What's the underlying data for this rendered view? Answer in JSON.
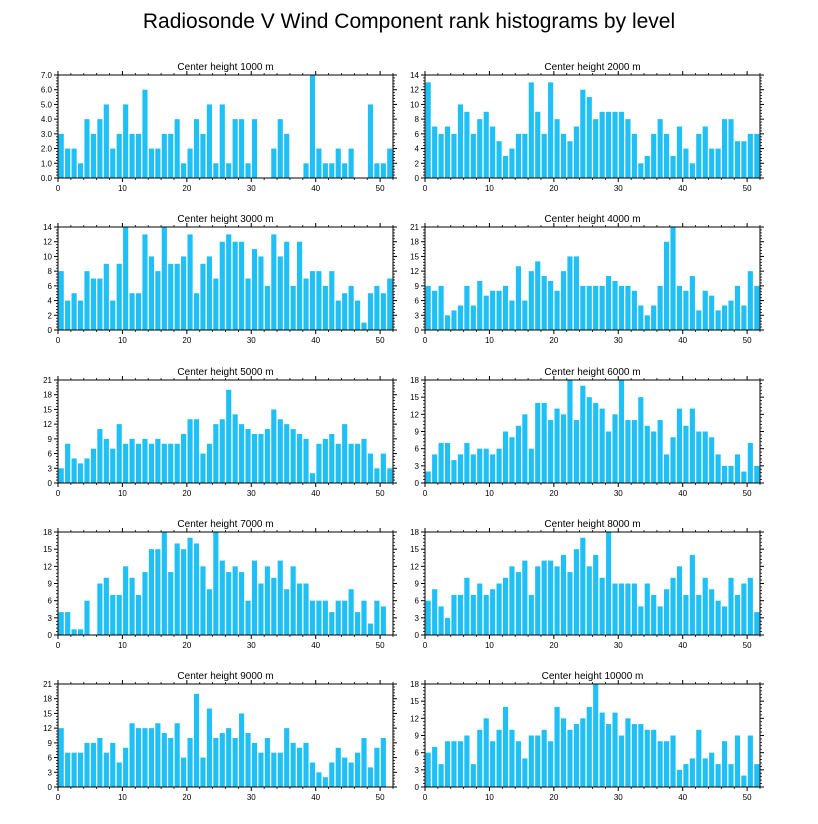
{
  "title": "Radiosonde V Wind Component rank histograms by level",
  "colors": {
    "bar": "#1ec0f5",
    "axis": "#000000",
    "background": "#ffffff"
  },
  "chart_data": [
    {
      "type": "bar",
      "title": "Center height 1000 m",
      "ylim": [
        0,
        7
      ],
      "yticks": [
        "0.0",
        "1.0",
        "2.0",
        "3.0",
        "4.0",
        "5.0",
        "6.0",
        "7.0"
      ],
      "xlim": [
        0,
        52
      ],
      "xticks": [
        "0",
        "10",
        "20",
        "30",
        "40",
        "50"
      ],
      "values": [
        3,
        2,
        2,
        1,
        4,
        3,
        4,
        5,
        2,
        3,
        5,
        3,
        3,
        6,
        2,
        2,
        3,
        3,
        4,
        1,
        2,
        4,
        3,
        5,
        1,
        5,
        1,
        4,
        4,
        1,
        4,
        0,
        0,
        2,
        4,
        3,
        0,
        0,
        1,
        7,
        2,
        1,
        1,
        2,
        1,
        2,
        0,
        0,
        5,
        1,
        1,
        2
      ]
    },
    {
      "type": "bar",
      "title": "Center height 2000 m",
      "ylim": [
        0,
        14
      ],
      "yticks": [
        "0",
        "2",
        "4",
        "6",
        "8",
        "10",
        "12",
        "14"
      ],
      "xlim": [
        0,
        52
      ],
      "xticks": [
        "0",
        "10",
        "20",
        "30",
        "40",
        "50"
      ],
      "values": [
        13,
        7,
        6,
        7,
        6,
        10,
        9,
        6,
        8,
        9,
        7,
        5,
        3,
        4,
        6,
        6,
        13,
        9,
        6,
        13,
        8,
        6,
        5,
        7,
        12,
        11,
        8,
        9,
        9,
        9,
        9,
        8,
        6,
        2,
        3,
        6,
        8,
        6,
        3,
        7,
        4,
        2,
        6,
        7,
        4,
        4,
        8,
        8,
        5,
        5,
        6,
        6
      ]
    },
    {
      "type": "bar",
      "title": "Center height 3000 m",
      "ylim": [
        0,
        14
      ],
      "yticks": [
        "0",
        "2",
        "4",
        "6",
        "8",
        "10",
        "12",
        "14"
      ],
      "xlim": [
        0,
        52
      ],
      "xticks": [
        "0",
        "10",
        "20",
        "30",
        "40",
        "50"
      ],
      "values": [
        8,
        4,
        5,
        4,
        8,
        7,
        7,
        9,
        4,
        9,
        14,
        5,
        5,
        13,
        10,
        8,
        14,
        9,
        9,
        10,
        13,
        5,
        9,
        10,
        7,
        12,
        13,
        12,
        12,
        7,
        11,
        10,
        6,
        13,
        10,
        12,
        6,
        12,
        7,
        8,
        8,
        6,
        8,
        4,
        5,
        6,
        4,
        1,
        5,
        6,
        5,
        7
      ]
    },
    {
      "type": "bar",
      "title": "Center height 4000 m",
      "ylim": [
        0,
        21
      ],
      "yticks": [
        "0",
        "3",
        "6",
        "9",
        "12",
        "15",
        "18",
        "21"
      ],
      "xlim": [
        0,
        52
      ],
      "xticks": [
        "0",
        "10",
        "20",
        "30",
        "40",
        "50"
      ],
      "values": [
        9,
        8,
        9,
        3,
        4,
        5,
        9,
        5,
        10,
        7,
        8,
        8,
        9,
        6,
        13,
        6,
        12,
        14,
        11,
        10,
        8,
        12,
        15,
        15,
        9,
        9,
        9,
        9,
        11,
        10,
        9,
        9,
        8,
        5,
        3,
        5,
        9,
        18,
        21,
        9,
        8,
        11,
        4,
        8,
        7,
        4,
        5,
        6,
        9,
        5,
        12,
        9
      ]
    },
    {
      "type": "bar",
      "title": "Center height 5000 m",
      "ylim": [
        0,
        21
      ],
      "yticks": [
        "0",
        "3",
        "6",
        "9",
        "12",
        "15",
        "18",
        "21"
      ],
      "xlim": [
        0,
        52
      ],
      "xticks": [
        "0",
        "10",
        "20",
        "30",
        "40",
        "50"
      ],
      "values": [
        3,
        8,
        5,
        4,
        5,
        7,
        11,
        9,
        7,
        12,
        8,
        9,
        8,
        9,
        8,
        9,
        8,
        8,
        8,
        10,
        13,
        13,
        6,
        8,
        12,
        13,
        19,
        14,
        12,
        11,
        10,
        10,
        11,
        15,
        13,
        12,
        11,
        10,
        9,
        2,
        8,
        9,
        10,
        8,
        12,
        8,
        8,
        9,
        6,
        3,
        6,
        3
      ]
    },
    {
      "type": "bar",
      "title": "Center height 6000 m",
      "ylim": [
        0,
        18
      ],
      "yticks": [
        "0",
        "3",
        "6",
        "9",
        "12",
        "15",
        "18"
      ],
      "xlim": [
        0,
        52
      ],
      "xticks": [
        "0",
        "10",
        "20",
        "30",
        "40",
        "50"
      ],
      "values": [
        2,
        5,
        7,
        7,
        4,
        5,
        7,
        5,
        6,
        6,
        5,
        6,
        9,
        8,
        10,
        12,
        6,
        14,
        14,
        11,
        13,
        12,
        18,
        11,
        17,
        15,
        14,
        13,
        9,
        12,
        18,
        11,
        11,
        15,
        10,
        9,
        11,
        5,
        8,
        13,
        10,
        13,
        9,
        9,
        8,
        5,
        3,
        3,
        5,
        2,
        7,
        3
      ]
    },
    {
      "type": "bar",
      "title": "Center height 7000 m",
      "ylim": [
        0,
        18
      ],
      "yticks": [
        "0",
        "3",
        "6",
        "9",
        "12",
        "15",
        "18"
      ],
      "xlim": [
        0,
        52
      ],
      "xticks": [
        "0",
        "10",
        "20",
        "30",
        "40",
        "50"
      ],
      "values": [
        4,
        4,
        1,
        1,
        6,
        0,
        9,
        10,
        7,
        7,
        12,
        10,
        7,
        11,
        15,
        15,
        18,
        11,
        16,
        15,
        17,
        16,
        12,
        8,
        18,
        13,
        11,
        12,
        11,
        6,
        13,
        9,
        12,
        10,
        13,
        8,
        12,
        9,
        9,
        6,
        6,
        6,
        4,
        6,
        6,
        8,
        4,
        6,
        2,
        6,
        5,
        0
      ]
    },
    {
      "type": "bar",
      "title": "Center height 8000 m",
      "ylim": [
        0,
        18
      ],
      "yticks": [
        "0",
        "3",
        "6",
        "9",
        "12",
        "15",
        "18"
      ],
      "xlim": [
        0,
        52
      ],
      "xticks": [
        "0",
        "10",
        "20",
        "30",
        "40",
        "50"
      ],
      "values": [
        6,
        8,
        5,
        3,
        7,
        7,
        10,
        7,
        9,
        7,
        8,
        9,
        10,
        12,
        11,
        13,
        7,
        12,
        13,
        13,
        12,
        14,
        11,
        15,
        17,
        12,
        14,
        10,
        18,
        9,
        9,
        9,
        9,
        5,
        9,
        7,
        5,
        8,
        10,
        12,
        7,
        14,
        7,
        10,
        8,
        6,
        5,
        10,
        7,
        9,
        10,
        4
      ]
    },
    {
      "type": "bar",
      "title": "Center height 9000 m",
      "ylim": [
        0,
        21
      ],
      "yticks": [
        "0",
        "3",
        "6",
        "9",
        "12",
        "15",
        "18",
        "21"
      ],
      "xlim": [
        0,
        52
      ],
      "xticks": [
        "0",
        "10",
        "20",
        "30",
        "40",
        "50"
      ],
      "values": [
        12,
        7,
        7,
        7,
        9,
        9,
        10,
        7,
        9,
        5,
        8,
        13,
        12,
        12,
        12,
        13,
        11,
        10,
        13,
        6,
        10,
        19,
        6,
        16,
        10,
        11,
        12,
        10,
        15,
        11,
        9,
        7,
        10,
        7,
        7,
        12,
        9,
        8,
        9,
        5,
        3,
        2,
        5,
        8,
        6,
        5,
        7,
        10,
        4,
        8,
        10,
        0
      ]
    },
    {
      "type": "bar",
      "title": "Center height 10000 m",
      "ylim": [
        0,
        18
      ],
      "yticks": [
        "0",
        "3",
        "6",
        "9",
        "12",
        "15",
        "18"
      ],
      "xlim": [
        0,
        52
      ],
      "xticks": [
        "0",
        "10",
        "20",
        "30",
        "40",
        "50"
      ],
      "values": [
        6,
        7,
        4,
        8,
        8,
        8,
        9,
        4,
        10,
        12,
        8,
        10,
        14,
        10,
        8,
        5,
        9,
        9,
        10,
        8,
        14,
        12,
        10,
        11,
        12,
        14,
        18,
        13,
        11,
        13,
        9,
        12,
        11,
        11,
        10,
        10,
        8,
        8,
        9,
        3,
        4,
        5,
        10,
        5,
        6,
        4,
        8,
        4,
        9,
        2,
        9,
        4
      ]
    }
  ]
}
